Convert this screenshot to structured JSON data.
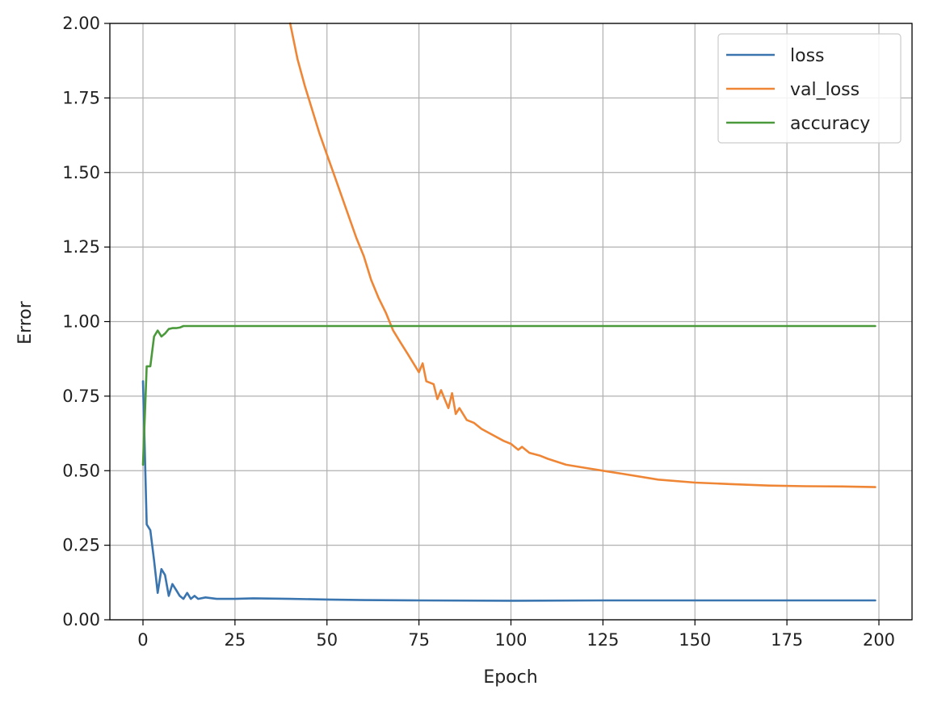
{
  "chart_data": {
    "type": "line",
    "title": "",
    "xlabel": "Epoch",
    "ylabel": "Error",
    "xlim": [
      -9,
      209
    ],
    "ylim": [
      0,
      2
    ],
    "x_ticks": [
      0,
      25,
      50,
      75,
      100,
      125,
      150,
      175,
      200
    ],
    "y_ticks": [
      0.0,
      0.25,
      0.5,
      0.75,
      1.0,
      1.25,
      1.5,
      1.75,
      2.0
    ],
    "x_tick_labels": [
      "0",
      "25",
      "50",
      "75",
      "100",
      "125",
      "150",
      "175",
      "200"
    ],
    "y_tick_labels": [
      "0.00",
      "0.25",
      "0.50",
      "0.75",
      "1.00",
      "1.25",
      "1.50",
      "1.75",
      "2.00"
    ],
    "grid": true,
    "legend_position": "top-right",
    "series": [
      {
        "name": "loss",
        "color": "#3a75b0",
        "points": [
          [
            0,
            0.8
          ],
          [
            1,
            0.32
          ],
          [
            2,
            0.3
          ],
          [
            3,
            0.2
          ],
          [
            4,
            0.09
          ],
          [
            5,
            0.17
          ],
          [
            6,
            0.15
          ],
          [
            7,
            0.08
          ],
          [
            8,
            0.12
          ],
          [
            9,
            0.1
          ],
          [
            10,
            0.08
          ],
          [
            11,
            0.07
          ],
          [
            12,
            0.09
          ],
          [
            13,
            0.07
          ],
          [
            14,
            0.08
          ],
          [
            15,
            0.07
          ],
          [
            17,
            0.075
          ],
          [
            20,
            0.07
          ],
          [
            25,
            0.07
          ],
          [
            30,
            0.072
          ],
          [
            40,
            0.07
          ],
          [
            50,
            0.068
          ],
          [
            60,
            0.066
          ],
          [
            75,
            0.065
          ],
          [
            100,
            0.064
          ],
          [
            125,
            0.065
          ],
          [
            150,
            0.065
          ],
          [
            175,
            0.065
          ],
          [
            199,
            0.065
          ]
        ]
      },
      {
        "name": "val_loss",
        "color": "#ef8636",
        "points": [
          [
            40,
            2.0
          ],
          [
            42,
            1.88
          ],
          [
            44,
            1.79
          ],
          [
            46,
            1.71
          ],
          [
            48,
            1.63
          ],
          [
            50,
            1.56
          ],
          [
            52,
            1.49
          ],
          [
            54,
            1.42
          ],
          [
            56,
            1.35
          ],
          [
            58,
            1.28
          ],
          [
            60,
            1.22
          ],
          [
            62,
            1.14
          ],
          [
            64,
            1.08
          ],
          [
            66,
            1.03
          ],
          [
            68,
            0.97
          ],
          [
            70,
            0.93
          ],
          [
            72,
            0.89
          ],
          [
            74,
            0.85
          ],
          [
            75,
            0.83
          ],
          [
            76,
            0.86
          ],
          [
            77,
            0.8
          ],
          [
            79,
            0.79
          ],
          [
            80,
            0.74
          ],
          [
            81,
            0.77
          ],
          [
            82,
            0.74
          ],
          [
            83,
            0.71
          ],
          [
            84,
            0.76
          ],
          [
            85,
            0.69
          ],
          [
            86,
            0.71
          ],
          [
            88,
            0.67
          ],
          [
            90,
            0.66
          ],
          [
            92,
            0.64
          ],
          [
            95,
            0.62
          ],
          [
            98,
            0.6
          ],
          [
            100,
            0.59
          ],
          [
            102,
            0.57
          ],
          [
            103,
            0.58
          ],
          [
            105,
            0.56
          ],
          [
            108,
            0.55
          ],
          [
            110,
            0.54
          ],
          [
            115,
            0.52
          ],
          [
            120,
            0.51
          ],
          [
            125,
            0.5
          ],
          [
            130,
            0.49
          ],
          [
            140,
            0.47
          ],
          [
            150,
            0.46
          ],
          [
            160,
            0.455
          ],
          [
            170,
            0.45
          ],
          [
            180,
            0.448
          ],
          [
            190,
            0.447
          ],
          [
            199,
            0.445
          ]
        ]
      },
      {
        "name": "accuracy",
        "color": "#4a9a3c",
        "points": [
          [
            0,
            0.52
          ],
          [
            1,
            0.85
          ],
          [
            2,
            0.85
          ],
          [
            3,
            0.95
          ],
          [
            4,
            0.97
          ],
          [
            5,
            0.95
          ],
          [
            6,
            0.96
          ],
          [
            7,
            0.975
          ],
          [
            8,
            0.978
          ],
          [
            9,
            0.978
          ],
          [
            10,
            0.98
          ],
          [
            11,
            0.985
          ],
          [
            15,
            0.985
          ],
          [
            25,
            0.985
          ],
          [
            50,
            0.985
          ],
          [
            100,
            0.985
          ],
          [
            150,
            0.985
          ],
          [
            199,
            0.985
          ]
        ]
      }
    ]
  }
}
